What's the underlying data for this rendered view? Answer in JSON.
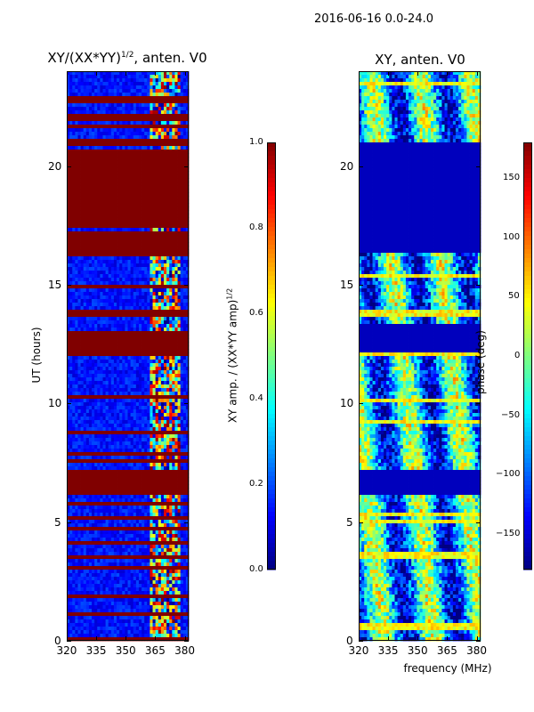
{
  "suptitle": "2016-06-16 0.0-24.0",
  "chart_data": [
    {
      "type": "heatmap",
      "title_main": "XY/(XX*YY)",
      "title_exp": "1/2",
      "title_tail": ", anten. V0",
      "ylabel": "UT (hours)",
      "xlabel": "",
      "xlim": [
        320,
        382
      ],
      "ylim": [
        0,
        24
      ],
      "xticks": [
        "320",
        "335",
        "350",
        "365",
        "380"
      ],
      "xtick_values": [
        320,
        335,
        350,
        365,
        380
      ],
      "yticks": [
        "0",
        "5",
        "10",
        "15",
        "20"
      ],
      "ytick_values": [
        0,
        5,
        10,
        15,
        20
      ],
      "flagged_bands_hours": [
        [
          6.1,
          7.2
        ],
        [
          12.0,
          13.1
        ],
        [
          16.4,
          17.3
        ],
        [
          17.4,
          20.7
        ],
        [
          20.9,
          21.2
        ]
      ],
      "active_freq_range_MHz": [
        362,
        378
      ],
      "colorbar": {
        "label_main": "XY amp. / (XX*YY amp)",
        "label_exp": "1/2",
        "ticks": [
          "0.0",
          "0.2",
          "0.4",
          "0.6",
          "0.8",
          "1.0"
        ],
        "tick_values": [
          0.0,
          0.2,
          0.4,
          0.6,
          0.8,
          1.0
        ],
        "range": [
          0.0,
          1.0
        ]
      }
    },
    {
      "type": "heatmap",
      "title": "XY, anten. V0",
      "ylabel": "",
      "xlabel": "frequency (MHz)",
      "xlim": [
        320,
        382
      ],
      "ylim": [
        0,
        24
      ],
      "xticks": [
        "320",
        "335",
        "350",
        "365",
        "380"
      ],
      "xtick_values": [
        320,
        335,
        350,
        365,
        380
      ],
      "yticks": [
        "0",
        "5",
        "10",
        "15",
        "20"
      ],
      "ytick_values": [
        0,
        5,
        10,
        15,
        20
      ],
      "flagged_bands_hours": [
        [
          6.1,
          7.2
        ],
        [
          12.1,
          13.3
        ],
        [
          16.3,
          21.0
        ]
      ],
      "colorbar": {
        "label": "phase (deg)",
        "ticks": [
          "-150",
          "−100",
          "−50",
          "0",
          "50",
          "100",
          "150"
        ],
        "tick_labels": [
          "−150",
          "−100",
          "−50",
          "0",
          "50",
          "100",
          "150"
        ],
        "tick_values": [
          -150,
          -100,
          -50,
          0,
          50,
          100,
          150
        ],
        "range": [
          -180,
          180
        ]
      }
    }
  ]
}
